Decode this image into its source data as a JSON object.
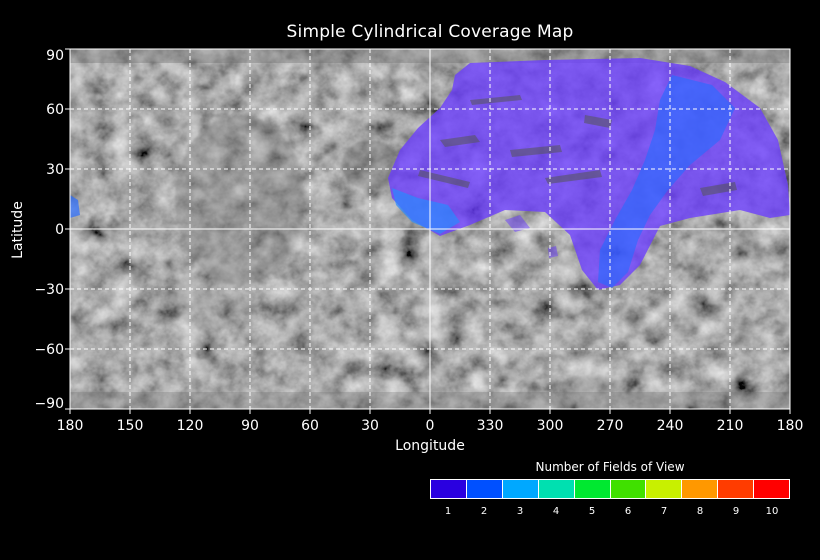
{
  "map": {
    "title": "Simple Cylindrical Coverage Map",
    "x_axis_label": "Longitude",
    "y_axis_label": "Latitude",
    "longitude_ticks": [
      "180",
      "150",
      "120",
      "90",
      "60",
      "30",
      "0",
      "330",
      "300",
      "270",
      "240",
      "210",
      "180"
    ],
    "latitude_ticks": [
      {
        "label": "90",
        "value": 90
      },
      {
        "label": "60",
        "value": 60
      },
      {
        "label": "30",
        "value": 30
      },
      {
        "label": "0",
        "value": 0
      },
      {
        "label": "−30",
        "value": -30
      },
      {
        "label": "−60",
        "value": -60
      },
      {
        "label": "−90",
        "value": -90
      }
    ],
    "grid": "dashed",
    "background": "grayscale planetary surface mosaic"
  },
  "legend": {
    "title": "Number of Fields of View",
    "placement": "bottom-right",
    "entries": [
      {
        "label": "1",
        "color": "#2a00e0"
      },
      {
        "label": "2",
        "color": "#0050ff"
      },
      {
        "label": "3",
        "color": "#00a8ff"
      },
      {
        "label": "4",
        "color": "#00e0b0"
      },
      {
        "label": "5",
        "color": "#00e830"
      },
      {
        "label": "6",
        "color": "#40e000"
      },
      {
        "label": "7",
        "color": "#c8f000"
      },
      {
        "label": "8",
        "color": "#ff9800"
      },
      {
        "label": "9",
        "color": "#ff3c00"
      },
      {
        "label": "10",
        "color": "#ff0000"
      }
    ]
  }
}
